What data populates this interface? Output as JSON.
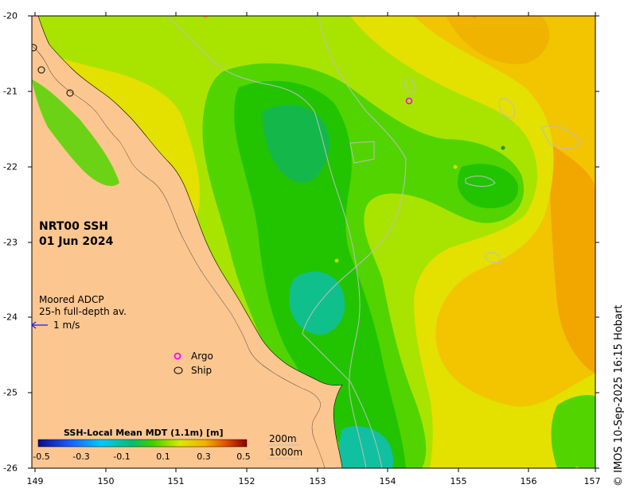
{
  "map": {
    "title_line1": "NRT00 SSH",
    "title_line2": "01 Jun 2024",
    "x_ticks": [
      "149",
      "150",
      "151",
      "152",
      "153",
      "154",
      "155",
      "156",
      "157"
    ],
    "y_ticks": [
      "-20",
      "-21",
      "-22",
      "-23",
      "-24",
      "-25",
      "-26"
    ],
    "lon_range": [
      149,
      157
    ],
    "lat_range": [
      -26,
      -20
    ],
    "adcp_label_line1": "Moored ADCP",
    "adcp_label_line2": "25-h full-depth av.",
    "adcp_scale_label": "1 m/s",
    "legend": {
      "argo_label": "Argo",
      "ship_label": "Ship",
      "argo_color": "#ff00ff",
      "ship_color": "#000000"
    },
    "colorbar": {
      "title": "SSH-Local Mean MDT (1.1m) [m]",
      "ticks": [
        "-0.5",
        "-0.3",
        "-0.1",
        "0.1",
        "0.3",
        "0.5"
      ],
      "range": [
        -0.5,
        0.5
      ]
    },
    "depth_contours": {
      "label1": "200m",
      "label2": "1000m"
    },
    "credit": "© IMOS 10-Sep-2025 16:15 Hobart",
    "colors": {
      "land": "#fbc690",
      "high": "#f5a500",
      "mid": "#ddee00",
      "low": "#22cc00",
      "lowest": "#00c890"
    }
  }
}
